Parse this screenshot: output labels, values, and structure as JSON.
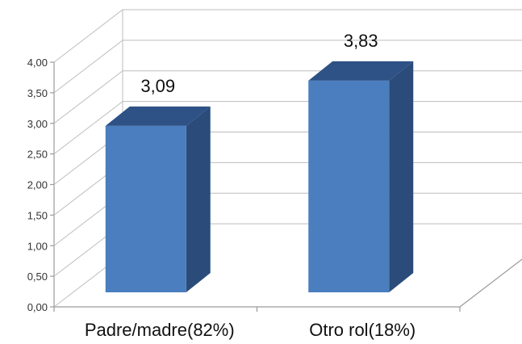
{
  "chart_data": {
    "type": "bar",
    "title": "",
    "xlabel": "",
    "ylabel": "",
    "categories": [
      "Padre/madre(82%)",
      "Otro rol(18%)"
    ],
    "values": [
      3.09,
      3.83
    ],
    "data_labels": [
      "3,09",
      "3,83"
    ],
    "ylim": [
      0,
      4
    ],
    "y_ticks": [
      0,
      0.5,
      1,
      1.5,
      2,
      2.5,
      3,
      3.5,
      4
    ],
    "y_tick_labels": [
      "0,00",
      "0,50",
      "1,00",
      "1,50",
      "2,00",
      "2,50",
      "3,00",
      "3,50",
      "4,00"
    ],
    "grid": true,
    "style": "3d-column",
    "colors": {
      "bar_front": "#4a7ebf",
      "bar_side": "#2b4c7a",
      "bar_top": "#2e5186"
    }
  }
}
